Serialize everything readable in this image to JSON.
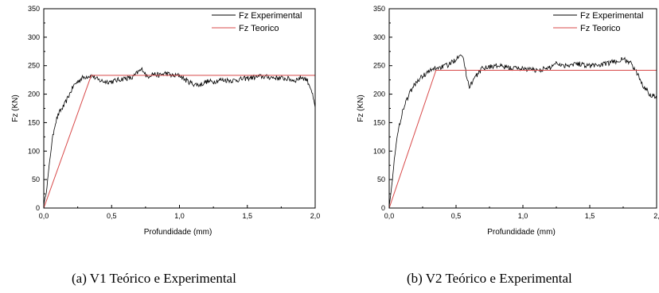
{
  "subfigures": [
    {
      "caption": "(a) V1 Teórico e Experimental"
    },
    {
      "caption": "(b) V2 Teórico e Experimental"
    }
  ],
  "chart_data": [
    {
      "type": "line",
      "xlabel": "Profundidade (mm)",
      "ylabel": "Fz (KN)",
      "xlim": [
        0,
        2.0
      ],
      "ylim": [
        0,
        350
      ],
      "xticks": [
        "0,0",
        "0,5",
        "1,0",
        "1,5",
        "2,0"
      ],
      "yticks": [
        "0",
        "50",
        "100",
        "150",
        "200",
        "250",
        "300",
        "350"
      ],
      "legend_position": "top-right",
      "grid": false,
      "series": [
        {
          "name": "Fz Experimental",
          "color": "#000000",
          "x": [
            0.0,
            0.02,
            0.04,
            0.06,
            0.08,
            0.1,
            0.12,
            0.15,
            0.18,
            0.2,
            0.22,
            0.25,
            0.28,
            0.3,
            0.33,
            0.36,
            0.4,
            0.45,
            0.5,
            0.55,
            0.6,
            0.65,
            0.7,
            0.73,
            0.76,
            0.8,
            0.85,
            0.9,
            0.95,
            1.0,
            1.05,
            1.1,
            1.15,
            1.2,
            1.25,
            1.3,
            1.4,
            1.5,
            1.6,
            1.7,
            1.8,
            1.85,
            1.9,
            1.94,
            1.97,
            2.0
          ],
          "values": [
            5,
            30,
            75,
            115,
            145,
            160,
            170,
            180,
            195,
            205,
            215,
            222,
            228,
            230,
            232,
            232,
            225,
            222,
            222,
            225,
            228,
            228,
            240,
            244,
            230,
            236,
            233,
            237,
            232,
            233,
            224,
            218,
            216,
            222,
            222,
            225,
            224,
            228,
            231,
            229,
            227,
            224,
            230,
            225,
            210,
            175
          ]
        },
        {
          "name": "Fz Teorico",
          "color": "#d84a4a",
          "x": [
            0.0,
            0.35,
            2.0
          ],
          "values": [
            0,
            233,
            233
          ]
        }
      ]
    },
    {
      "type": "line",
      "xlabel": "Profundidade (mm)",
      "ylabel": "Fz (KN)",
      "xlim": [
        0,
        2.0
      ],
      "ylim": [
        0,
        350
      ],
      "xticks": [
        "0,0",
        "0,5",
        "1,0",
        "1,5",
        "2,"
      ],
      "yticks": [
        "0",
        "50",
        "100",
        "150",
        "200",
        "250",
        "300",
        "350"
      ],
      "legend_position": "top-right",
      "grid": false,
      "series": [
        {
          "name": "Fz Experimental",
          "color": "#000000",
          "x": [
            0.0,
            0.02,
            0.04,
            0.06,
            0.08,
            0.1,
            0.13,
            0.16,
            0.2,
            0.25,
            0.3,
            0.35,
            0.4,
            0.45,
            0.5,
            0.53,
            0.55,
            0.58,
            0.6,
            0.65,
            0.7,
            0.8,
            0.9,
            1.0,
            1.1,
            1.2,
            1.25,
            1.3,
            1.4,
            1.5,
            1.6,
            1.7,
            1.75,
            1.8,
            1.85,
            1.9,
            1.95,
            2.0
          ],
          "values": [
            5,
            40,
            90,
            125,
            150,
            170,
            190,
            205,
            220,
            232,
            240,
            246,
            248,
            252,
            262,
            272,
            268,
            230,
            214,
            232,
            246,
            250,
            246,
            245,
            242,
            246,
            256,
            250,
            254,
            250,
            252,
            258,
            261,
            256,
            238,
            215,
            200,
            195
          ]
        },
        {
          "name": "Fz Teorico",
          "color": "#d84a4a",
          "x": [
            0.0,
            0.35,
            2.0
          ],
          "values": [
            0,
            242,
            242
          ]
        }
      ]
    }
  ]
}
